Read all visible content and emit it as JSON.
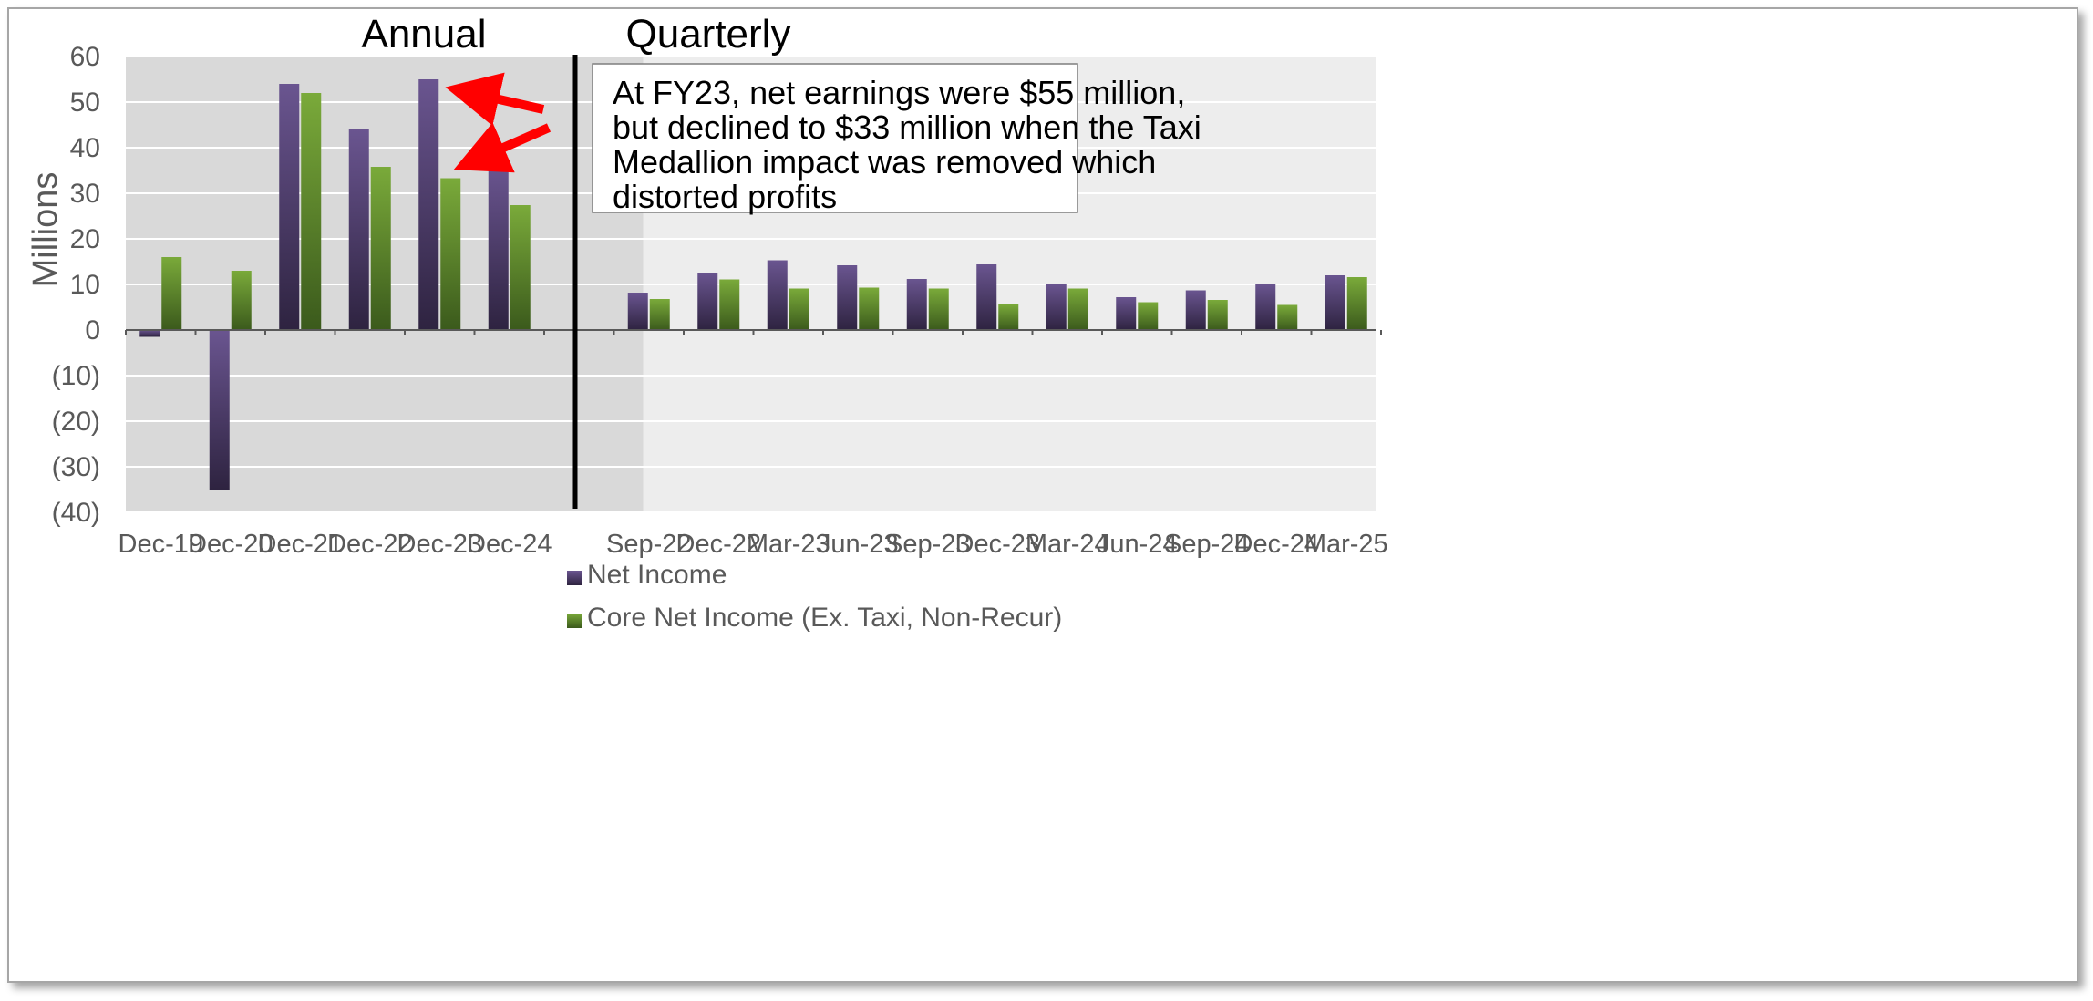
{
  "chart_data": {
    "type": "bar",
    "title": "",
    "ylabel": "Millions",
    "xlabel": "",
    "ylim": [
      -40,
      60
    ],
    "yticks": [
      60,
      50,
      40,
      30,
      20,
      10,
      0,
      -10,
      -20,
      -30,
      -40
    ],
    "ytick_labels": [
      "60",
      "50",
      "40",
      "30",
      "20",
      "10",
      "0",
      "(10)",
      "(20)",
      "(30)",
      "(40)"
    ],
    "grid": true,
    "sections": [
      {
        "label": "Annual",
        "categories": [
          "Dec-19",
          "Dec-20",
          "Dec-21",
          "Dec-22",
          "Dec-23",
          "Dec-24",
          ""
        ],
        "series": [
          {
            "name": "Net Income",
            "values": [
              -1.5,
              -35,
              54,
              44,
              55,
              36,
              null
            ]
          },
          {
            "name": "Core Net Income (Ex. Taxi, Non-Recur)",
            "values": [
              16,
              13,
              52,
              35.8,
              33.3,
              27.4,
              null
            ]
          }
        ]
      },
      {
        "label": "Quarterly",
        "categories": [
          "Sep-22",
          "Dec-22",
          "Mar-23",
          "Jun-23",
          "Sep-23",
          "Dec-23",
          "Mar-24",
          "Jun-24",
          "Sep-24",
          "Dec-24",
          "Mar-25"
        ],
        "series": [
          {
            "name": "Net Income",
            "values": [
              8.2,
              12.6,
              15.3,
              14.2,
              11.2,
              14.4,
              10,
              7.2,
              8.7,
              10.1,
              12
            ]
          },
          {
            "name": "Core Net Income (Ex. Taxi, Non-Recur)",
            "values": [
              6.8,
              11.1,
              9.1,
              9.3,
              9.1,
              5.6,
              9.1,
              6.1,
              6.6,
              5.5,
              11.6
            ]
          }
        ]
      }
    ],
    "legend": [
      {
        "name": "Net Income",
        "color": "#4f3d6f"
      },
      {
        "name": "Core Net Income (Ex. Taxi, Non-Recur)",
        "color": "#5f8a2c"
      }
    ],
    "legend_position": "bottom-center",
    "annotation": {
      "lines": [
        "At FY23, net earnings were $55 million,",
        "but declined to $33 million when the Taxi",
        "Medallion impact was removed which",
        "distorted profits"
      ],
      "points_to": [
        "Dec-23 Net Income",
        "Dec-23 Core Net Income"
      ]
    }
  },
  "colors": {
    "net_top": "#6a5590",
    "net_bottom": "#2e2340",
    "core_top": "#7aaa3a",
    "core_bottom": "#3b5a1c",
    "arrow": "#ff0000",
    "grid": "#ffffff",
    "annual_bg": "#d9d9d9",
    "quarterly_bg": "#ededed"
  }
}
